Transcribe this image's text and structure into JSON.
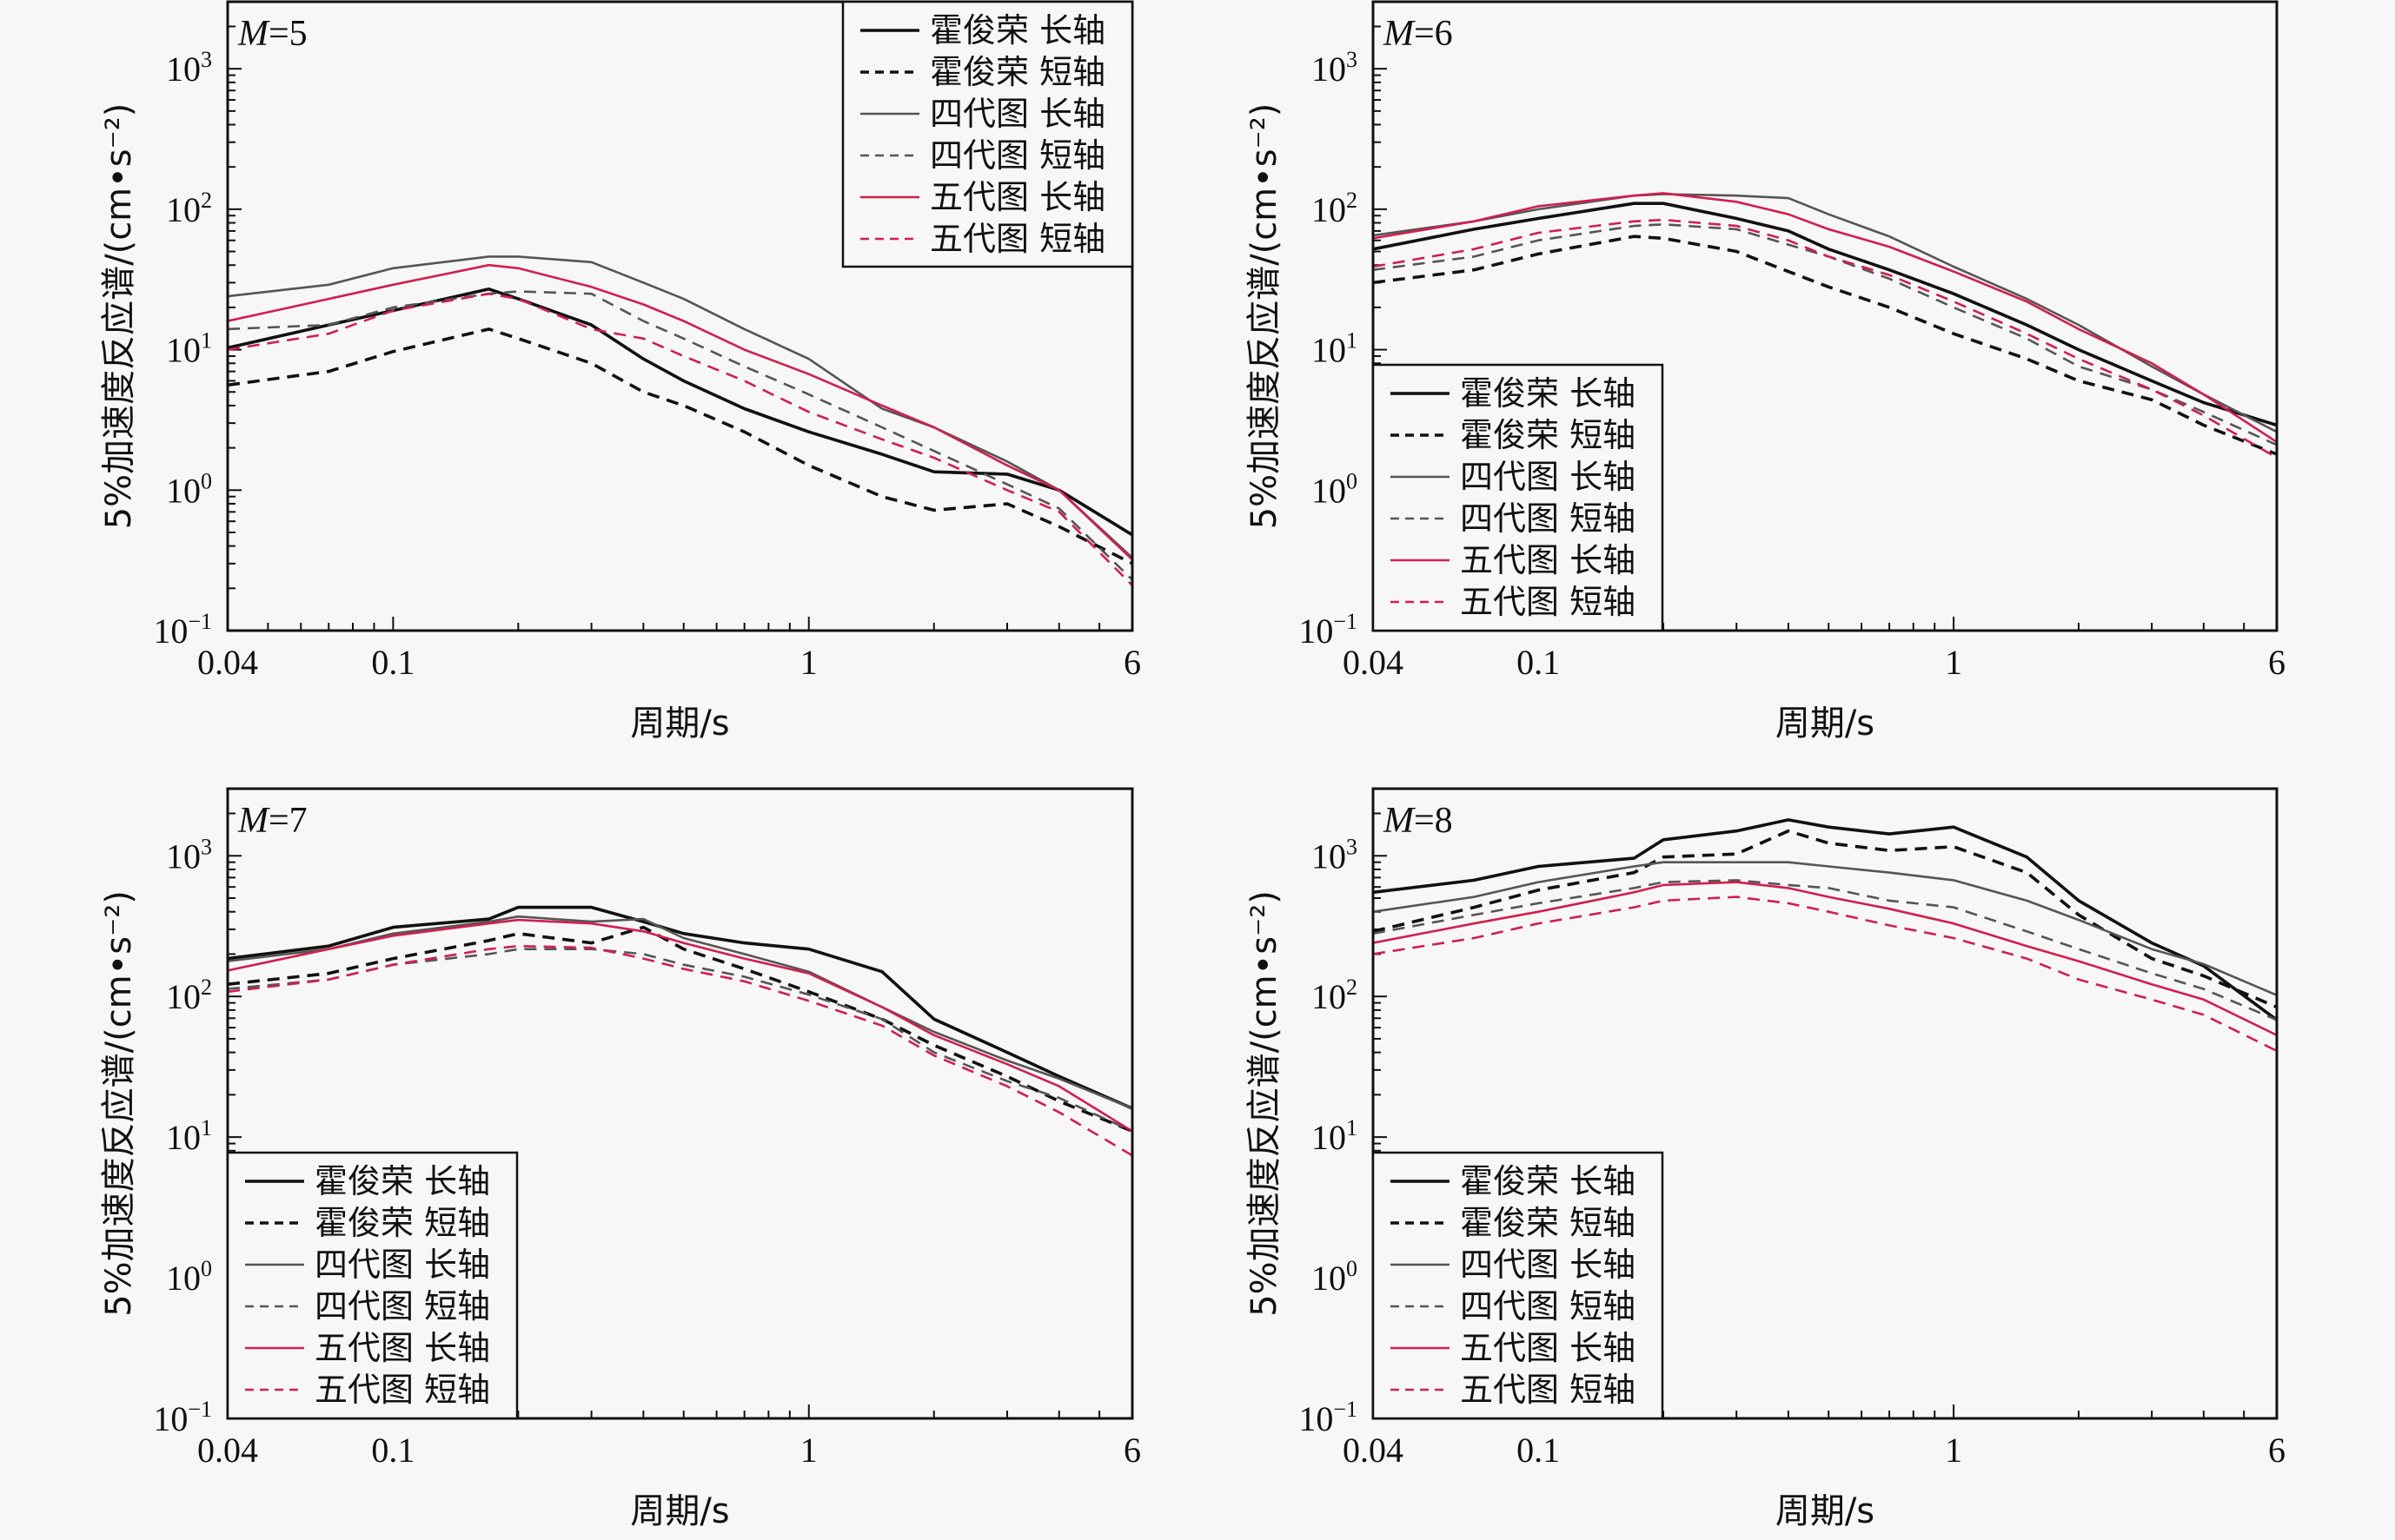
{
  "chart_data": {
    "type": "line",
    "layout": "2x2 grid",
    "xscale": "log",
    "yscale": "log",
    "xlim": [
      0.04,
      6
    ],
    "ylim": [
      0.1,
      3000
    ],
    "xticks": [
      {
        "value": 0.04,
        "label": "0.04"
      },
      {
        "value": 0.1,
        "label": "0.1"
      },
      {
        "value": 1,
        "label": "1"
      },
      {
        "value": 6,
        "label": "6"
      }
    ],
    "yticks": [
      {
        "value": 0.1,
        "base": "10",
        "exp": "−1"
      },
      {
        "value": 1,
        "base": "10",
        "exp": "0"
      },
      {
        "value": 10,
        "base": "10",
        "exp": "1"
      },
      {
        "value": 100,
        "base": "10",
        "exp": "2"
      },
      {
        "value": 1000,
        "base": "10",
        "exp": "3"
      }
    ],
    "xlabel": "周期/s",
    "ylabel": "5%加速度反应谱/(cm•s⁻²)",
    "series_styles": [
      {
        "name": "霍俊荣 长轴",
        "color": "#111111",
        "dash": "solid",
        "weight": "bold"
      },
      {
        "name": "霍俊荣 短轴",
        "color": "#111111",
        "dash": "dashed",
        "weight": "bold"
      },
      {
        "name": "四代图 长轴",
        "color": "#555555",
        "dash": "solid",
        "weight": "normal"
      },
      {
        "name": "四代图 短轴",
        "color": "#555555",
        "dash": "dashed",
        "weight": "normal"
      },
      {
        "name": "五代图 长轴",
        "color": "#d01f4e",
        "dash": "solid",
        "weight": "normal"
      },
      {
        "name": "五代图 短轴",
        "color": "#d01f4e",
        "dash": "dashed",
        "weight": "normal"
      }
    ],
    "x": [
      0.04,
      0.07,
      0.1,
      0.17,
      0.2,
      0.3,
      0.4,
      0.5,
      0.7,
      1,
      1.5,
      2,
      3,
      4,
      6
    ],
    "panels": [
      {
        "title_var": "M",
        "title_value": "5",
        "legend": "top-right",
        "series": [
          {
            "name": "霍俊荣 长轴",
            "values": [
              10.3,
              15,
              19,
              27,
              23,
              15,
              8.6,
              6,
              3.8,
              2.6,
              1.8,
              1.35,
              1.3,
              1.0,
              0.48
            ]
          },
          {
            "name": "霍俊荣 短轴",
            "values": [
              5.6,
              7,
              9.7,
              14,
              12,
              8,
              5,
              4,
              2.6,
              1.5,
              0.9,
              0.72,
              0.8,
              0.55,
              0.3
            ]
          },
          {
            "name": "四代图 长轴",
            "values": [
              24,
              29,
              38,
              46,
              46,
              42,
              30,
              23,
              14,
              8.6,
              3.8,
              2.8,
              1.6,
              1.0,
              0.33
            ]
          },
          {
            "name": "四代图 短轴",
            "values": [
              14,
              15,
              20,
              25,
              26,
              25,
              16,
              12,
              7.6,
              4.8,
              2.8,
              1.9,
              1.1,
              0.74,
              0.23
            ]
          },
          {
            "name": "五代图 长轴",
            "values": [
              16,
              23,
              29,
              40,
              38,
              28,
              21,
              16,
              10,
              6.7,
              4,
              2.8,
              1.5,
              1.0,
              0.32
            ]
          },
          {
            "name": "五代图 短轴",
            "values": [
              10,
              13,
              19,
              25,
              23,
              14,
              12,
              9,
              6,
              3.6,
              2.3,
              1.7,
              1.0,
              0.7,
              0.21
            ]
          }
        ]
      },
      {
        "title_var": "M",
        "title_value": "6",
        "legend": "bottom-left",
        "series": [
          {
            "name": "霍俊荣 长轴",
            "values": [
              52,
              72,
              86,
              110,
              110,
              86,
              70,
              52,
              37,
              25,
              15,
              10,
              6,
              4.2,
              2.9
            ]
          },
          {
            "name": "霍俊荣 短轴",
            "values": [
              30,
              37,
              48,
              64,
              62,
              50,
              36,
              28,
              20,
              13,
              8.6,
              6,
              4.4,
              2.9,
              1.8
            ]
          },
          {
            "name": "四代图 长轴",
            "values": [
              65,
              82,
              100,
              125,
              128,
              125,
              120,
              92,
              64,
              39,
              23,
              15,
              7.6,
              4.8,
              2.6
            ]
          },
          {
            "name": "四代图 短轴",
            "values": [
              37,
              46,
              60,
              76,
              78,
              72,
              56,
              46,
              32,
              20,
              12,
              7.6,
              5.2,
              3.6,
              2.1
            ]
          },
          {
            "name": "五代图 长轴",
            "values": [
              62,
              82,
              105,
              125,
              130,
              113,
              92,
              72,
              54,
              36,
              22,
              14,
              8,
              4.8,
              2.2
            ]
          },
          {
            "name": "五代图 短轴",
            "values": [
              39,
              52,
              68,
              82,
              84,
              76,
              60,
              46,
              34,
              22,
              13,
              8.6,
              5.2,
              3.4,
              1.7
            ]
          }
        ]
      },
      {
        "title_var": "M",
        "title_value": "7",
        "legend": "bottom-left",
        "series": [
          {
            "name": "霍俊荣 长轴",
            "values": [
              186,
              228,
              310,
              355,
              430,
              430,
              340,
              280,
              240,
              217,
              150,
              69,
              40,
              27,
              16
            ]
          },
          {
            "name": "霍俊荣 短轴",
            "values": [
              122,
              146,
              186,
              250,
              280,
              240,
              310,
              217,
              157,
              108,
              69,
              45,
              27,
              18,
              11
            ]
          },
          {
            "name": "四代图 长轴",
            "values": [
              178,
              217,
              280,
              340,
              370,
              340,
              355,
              260,
              200,
              150,
              84,
              56,
              35,
              26,
              16
            ]
          },
          {
            "name": "四代图 短轴",
            "values": [
              113,
              132,
              168,
              200,
              217,
              217,
              200,
              168,
              138,
              103,
              69,
              40,
              25,
              19,
              11
            ]
          },
          {
            "name": "五代图 长轴",
            "values": [
              153,
              217,
              270,
              330,
              350,
              330,
              290,
              240,
              186,
              146,
              84,
              53,
              33,
              23,
              11
            ]
          },
          {
            "name": "五代图 短轴",
            "values": [
              108,
              132,
              168,
              217,
              228,
              222,
              186,
              157,
              128,
              93,
              62,
              38,
              23,
              15,
              7.4
            ]
          }
        ]
      },
      {
        "title_var": "M",
        "title_value": "8",
        "legend": "bottom-left",
        "series": [
          {
            "name": "霍俊荣 长轴",
            "values": [
              550,
              670,
              840,
              960,
              1300,
              1500,
              1800,
              1600,
              1430,
              1600,
              980,
              480,
              240,
              165,
              68
            ]
          },
          {
            "name": "霍俊荣 短轴",
            "values": [
              290,
              430,
              570,
              760,
              980,
              1030,
              1500,
              1230,
              1090,
              1160,
              760,
              380,
              186,
              140,
              84
            ]
          },
          {
            "name": "四代图 长轴",
            "values": [
              400,
              510,
              650,
              840,
              900,
              900,
              900,
              840,
              760,
              670,
              480,
              350,
              217,
              170,
              102
            ]
          },
          {
            "name": "四代图 短轴",
            "values": [
              280,
              380,
              460,
              590,
              650,
              670,
              620,
              590,
              480,
              430,
              290,
              217,
              146,
              113,
              68
            ]
          },
          {
            "name": "五代图 长轴",
            "values": [
              240,
              330,
              400,
              550,
              620,
              650,
              590,
              510,
              420,
              330,
              228,
              178,
              122,
              95,
              53
            ]
          },
          {
            "name": "五代图 短轴",
            "values": [
              200,
              260,
              330,
              430,
              480,
              510,
              460,
              400,
              320,
              260,
              186,
              132,
              95,
              74,
              41
            ]
          }
        ]
      }
    ]
  }
}
